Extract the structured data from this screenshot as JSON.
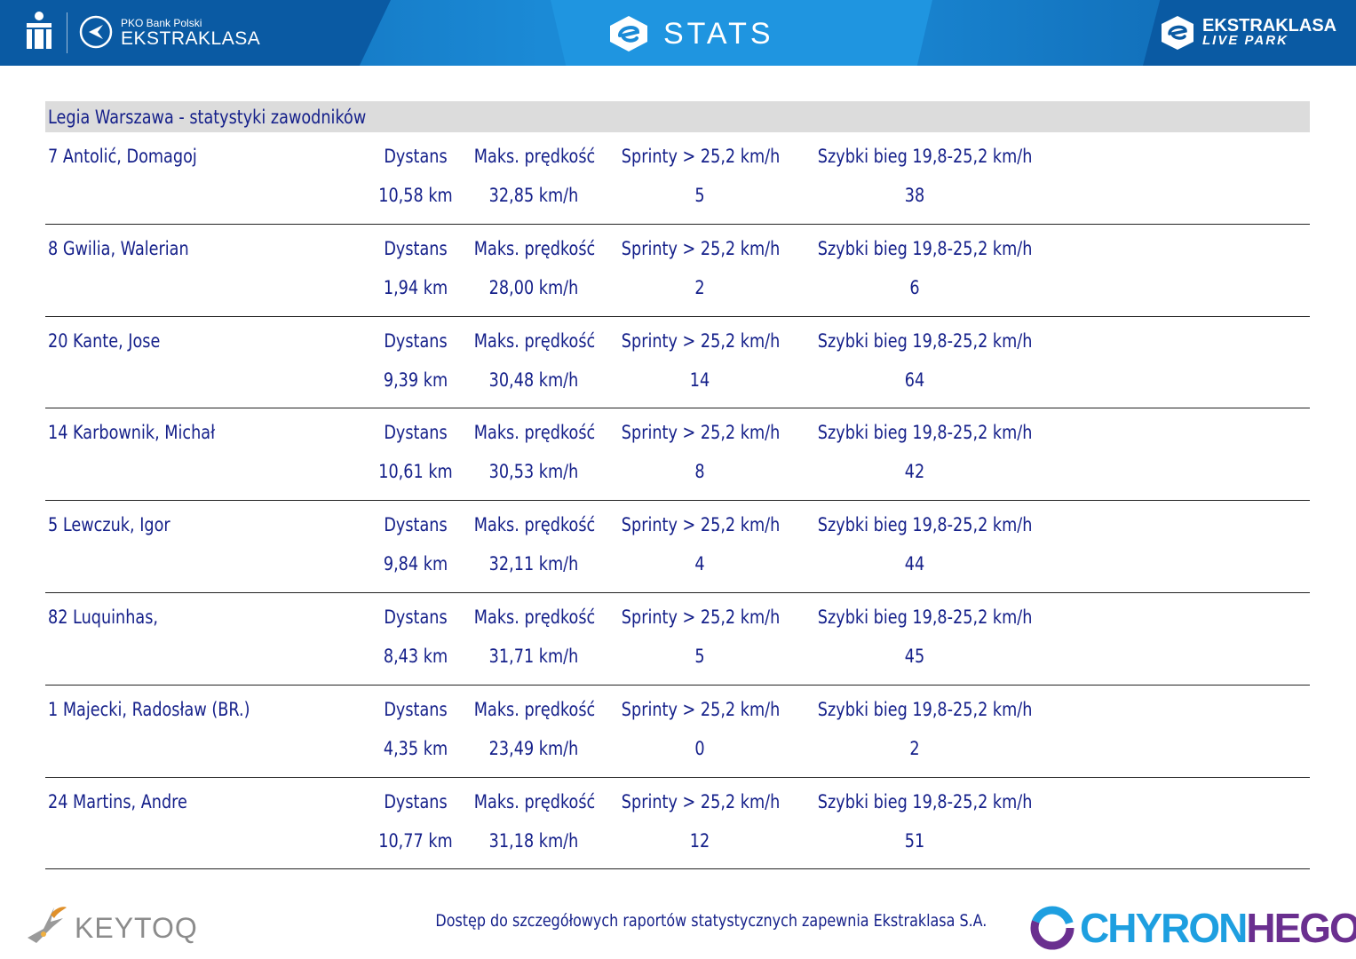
{
  "header": {
    "brand_small": "PKO Bank Polski",
    "brand_big": "EKSTRAKLASA",
    "center_title": "STATS",
    "live_line1": "EKSTRAKLASA",
    "live_line2": "LIVE PARK"
  },
  "team": {
    "title": "Legia Warszawa - statystyki zawodników"
  },
  "labels": {
    "distance": "Dystans",
    "max_speed": "Maks. prędkość",
    "sprints": "Sprinty > 25,2 km/h",
    "fast_run": "Szybki bieg 19,8-25,2 km/h"
  },
  "players": [
    {
      "name": "7  Antolić, Domagoj",
      "distance": "10,58 km",
      "max_speed": "32,85 km/h",
      "sprints": "5",
      "fast_run": "38"
    },
    {
      "name": "8  Gwilia, Walerian",
      "distance": "1,94 km",
      "max_speed": "28,00 km/h",
      "sprints": "2",
      "fast_run": "6"
    },
    {
      "name": "20  Kante, Jose",
      "distance": "9,39 km",
      "max_speed": "30,48 km/h",
      "sprints": "14",
      "fast_run": "64"
    },
    {
      "name": "14  Karbownik, Michał",
      "distance": "10,61 km",
      "max_speed": "30,53 km/h",
      "sprints": "8",
      "fast_run": "42"
    },
    {
      "name": "5  Lewczuk, Igor",
      "distance": "9,84 km",
      "max_speed": "32,11 km/h",
      "sprints": "4",
      "fast_run": "44"
    },
    {
      "name": "82  Luquinhas,",
      "distance": "8,43 km",
      "max_speed": "31,71 km/h",
      "sprints": "5",
      "fast_run": "45"
    },
    {
      "name": "1  Majecki, Radosław (BR.)",
      "distance": "4,35 km",
      "max_speed": "23,49 km/h",
      "sprints": "0",
      "fast_run": "2"
    },
    {
      "name": "24  Martins, Andre",
      "distance": "10,77 km",
      "max_speed": "31,18 km/h",
      "sprints": "12",
      "fast_run": "51"
    }
  ],
  "footer": {
    "keytoq": "KEYTOQ",
    "note": "Dostęp do szczegółowych raportów statystycznych zapewnia Ekstraklasa S.A.",
    "chyron_a": "CHYRON",
    "chyron_b": "HEGO"
  },
  "colors": {
    "header_blue": "#1b8ad6",
    "header_dark": "#0a5aa3",
    "text_navy": "#15208a",
    "team_bar_gray": "#dcdcdc",
    "chyron_cyan": "#1e9fe0",
    "chyron_purple": "#6a2f8f"
  }
}
